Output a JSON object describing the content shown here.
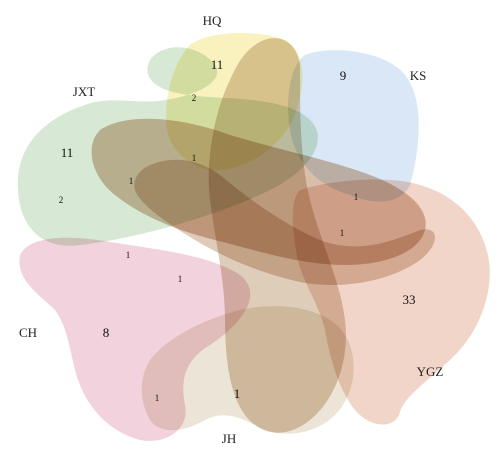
{
  "sets": [
    {
      "id": "HQ",
      "label": "HQ",
      "color": "#f7eeaa"
    },
    {
      "id": "KS",
      "label": "KS",
      "color": "#bcd3ef"
    },
    {
      "id": "JXT",
      "label": "JXT",
      "color": "#bcd9b8"
    },
    {
      "id": "CH",
      "label": "CH",
      "color": "#e9b6c6"
    },
    {
      "id": "YGZ",
      "label": "YGZ",
      "color": "#eab9a4"
    },
    {
      "id": "JH",
      "label": "JH",
      "color": "#dfd3bd"
    },
    {
      "id": "S7",
      "label": "",
      "color": "#c2a37f"
    }
  ],
  "counts": [
    {
      "id": "hq-only",
      "value": "11"
    },
    {
      "id": "ks-only",
      "value": "9"
    },
    {
      "id": "jxt-only",
      "value": "11"
    },
    {
      "id": "ch-only",
      "value": "8"
    },
    {
      "id": "ygz-only",
      "value": "33"
    },
    {
      "id": "jh-only",
      "value": "1"
    },
    {
      "id": "jxt-hq",
      "value": "2"
    },
    {
      "id": "jxt-hq-core",
      "value": "1"
    },
    {
      "id": "jxt-mid",
      "value": "1"
    },
    {
      "id": "jxt-ch",
      "value": "2"
    },
    {
      "id": "ks-ygz",
      "value": "1"
    },
    {
      "id": "center-right",
      "value": "1"
    },
    {
      "id": "ch-left",
      "value": "1"
    },
    {
      "id": "ch-inner",
      "value": "1"
    },
    {
      "id": "jh-left",
      "value": "1"
    }
  ]
}
